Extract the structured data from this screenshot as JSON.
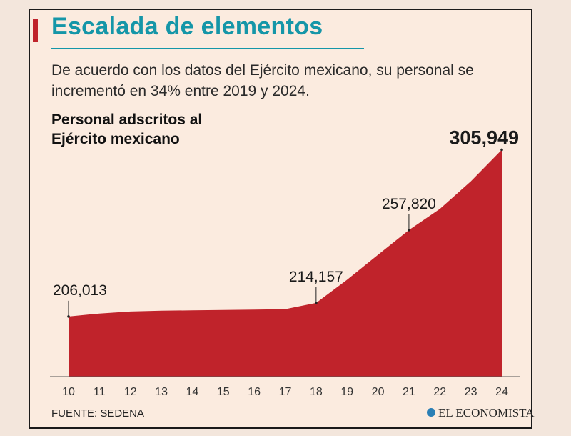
{
  "header": {
    "title": "Escalada de elementos",
    "subtitle": "De acuerdo con los datos del Ejército mexicano, su personal se incrementó en 34% entre 2019 y 2024."
  },
  "footer": {
    "source": "FUENTE: SEDENA",
    "logo_text": "EL ECONOMISTA"
  },
  "colors": {
    "accent": "#c0232b",
    "title": "#1596a8",
    "background": "#fbebdf"
  },
  "chart_data": {
    "type": "area",
    "title": "Personal adscritos al Ejército mexicano",
    "categories": [
      "10",
      "11",
      "12",
      "13",
      "14",
      "15",
      "16",
      "17",
      "18",
      "19",
      "20",
      "21",
      "22",
      "23",
      "24"
    ],
    "series": [
      {
        "values": [
          206013,
          207800,
          209000,
          209500,
          209700,
          209900,
          210100,
          210400,
          214157,
          228000,
          243000,
          257820,
          270500,
          287000,
          305949
        ]
      }
    ],
    "labels": [
      {
        "category": "10",
        "text": "206,013",
        "bold": false
      },
      {
        "category": "18",
        "text": "214,157",
        "bold": false
      },
      {
        "category": "21",
        "text": "257,820",
        "bold": false
      },
      {
        "category": "24",
        "text": "305,949",
        "bold": true
      }
    ],
    "ylim": [
      170000,
      310000
    ],
    "grid": false
  }
}
